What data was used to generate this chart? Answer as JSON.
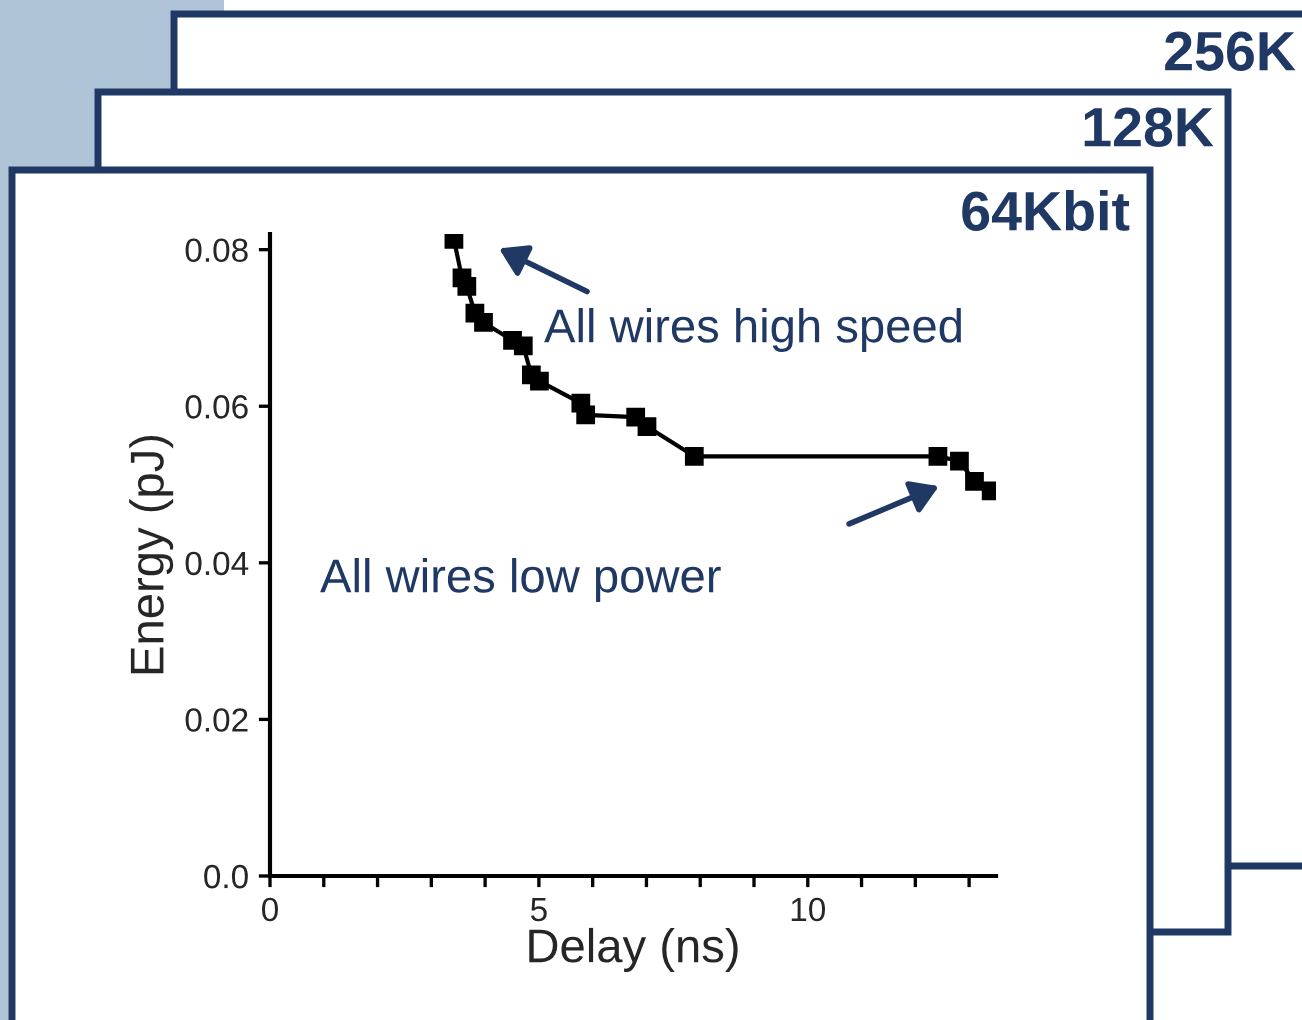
{
  "chart_data": {
    "type": "line",
    "title": "64Kbit",
    "xlabel": "Delay (ns)",
    "ylabel": "Energy (pJ)",
    "x": [
      3.42,
      3.57,
      3.66,
      3.81,
      3.97,
      4.51,
      4.71,
      4.86,
      5.01,
      5.78,
      5.87,
      6.8,
      7.01,
      7.89,
      12.42,
      12.82,
      13.1,
      13.41
    ],
    "series": [
      {
        "color": "#000000",
        "values": [
          0.0813,
          0.0764,
          0.0753,
          0.0719,
          0.0707,
          0.0684,
          0.0677,
          0.064,
          0.0632,
          0.0604,
          0.0589,
          0.0586,
          0.0574,
          0.0536,
          0.0536,
          0.053,
          0.0504,
          0.0492
        ]
      }
    ],
    "xlim": [
      0,
      13.5
    ],
    "ylim": [
      0,
      0.082
    ],
    "xticks": [
      0,
      {
        "value": 1,
        "label": null
      },
      {
        "value": 2,
        "label": null
      },
      {
        "value": 3,
        "label": null
      },
      {
        "value": 4,
        "label": null
      },
      5,
      {
        "value": 6,
        "label": null
      },
      {
        "value": 7,
        "label": null
      },
      {
        "value": 8,
        "label": null
      },
      {
        "value": 9,
        "label": null
      },
      10,
      {
        "value": 11,
        "label": null
      },
      {
        "value": 12,
        "label": null
      },
      {
        "value": 13,
        "label": null
      }
    ],
    "yticks": [
      {
        "value": 0,
        "label": "0.0"
      },
      0.02,
      0.04,
      0.06,
      0.08
    ],
    "marker": "square",
    "line_style": "solid",
    "grid": false,
    "legend": false,
    "annotations": [
      "All wires high speed",
      "All wires low power",
      "128K",
      "256K"
    ]
  }
}
